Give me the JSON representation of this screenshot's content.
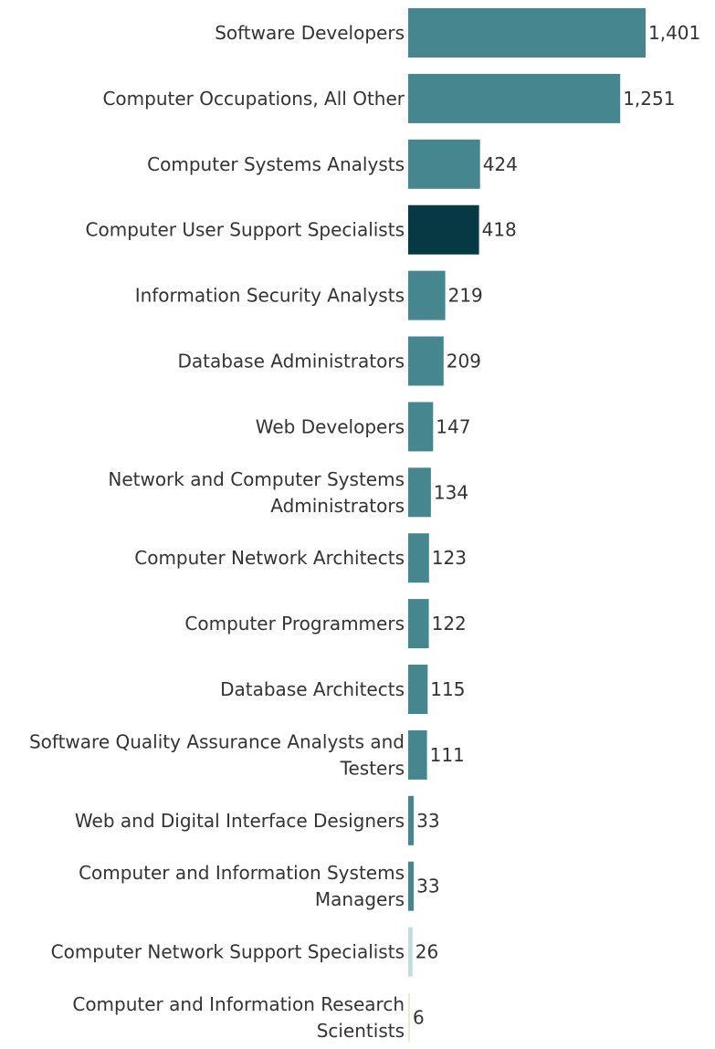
{
  "chart_data": {
    "type": "bar",
    "orientation": "horizontal",
    "title": "",
    "xlabel": "",
    "ylabel": "",
    "categories": [
      [
        "Software Developers"
      ],
      [
        "Computer Occupations, All Other"
      ],
      [
        "Computer Systems Analysts"
      ],
      [
        "Computer User Support Specialists"
      ],
      [
        "Information Security Analysts"
      ],
      [
        "Database Administrators"
      ],
      [
        "Web Developers"
      ],
      [
        "Network and Computer Systems",
        "Administrators"
      ],
      [
        "Computer Network Architects"
      ],
      [
        "Computer Programmers"
      ],
      [
        "Database Architects"
      ],
      [
        "Software Quality Assurance Analysts and",
        "Testers"
      ],
      [
        "Web and Digital Interface Designers"
      ],
      [
        "Computer and Information Systems",
        "Managers"
      ],
      [
        "Computer Network Support Specialists"
      ],
      [
        "Computer and Information Research",
        "Scientists"
      ]
    ],
    "values": [
      1401,
      1251,
      424,
      418,
      219,
      209,
      147,
      134,
      123,
      122,
      115,
      111,
      33,
      33,
      26,
      6
    ],
    "value_labels": [
      "1,401",
      "1,251",
      "424",
      "418",
      "219",
      "209",
      "147",
      "134",
      "123",
      "122",
      "115",
      "111",
      "33",
      "33",
      "26",
      "6"
    ],
    "colors": [
      "#46878f",
      "#46878f",
      "#46878f",
      "#063944",
      "#46878f",
      "#46878f",
      "#46878f",
      "#46878f",
      "#46878f",
      "#46878f",
      "#46878f",
      "#46878f",
      "#46878f",
      "#46878f",
      "#c2dde1",
      "#f0ead2"
    ],
    "xlim": [
      0,
      1401
    ],
    "grid": false,
    "legend": "none"
  }
}
